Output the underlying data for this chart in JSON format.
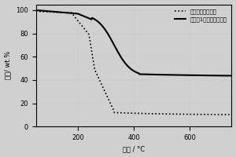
{
  "title": "",
  "xlabel": "温度 / °C",
  "ylabel": "失重/ wt.%",
  "xlim": [
    50,
    750
  ],
  "ylim": [
    0,
    105
  ],
  "yticks": [
    0,
    20,
    40,
    60,
    80,
    100
  ],
  "xticks": [
    200,
    400,
    600
  ],
  "legend_dotted": "未改性纳米纤维素",
  "legend_solid": "实施例1改性杂化前驱体",
  "bg_color": "#d0d0d0",
  "line_color": "#000000"
}
